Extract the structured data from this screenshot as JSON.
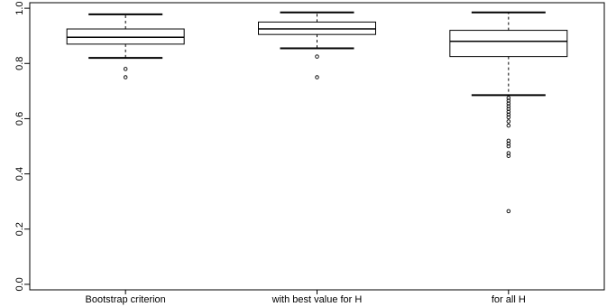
{
  "chart_data": {
    "type": "boxplot",
    "title": "",
    "xlabel": "",
    "ylabel": "",
    "ylim": [
      -0.02,
      1.02
    ],
    "grid": false,
    "yticks": [
      {
        "value": 0.0,
        "label": "0.0"
      },
      {
        "value": 0.2,
        "label": "0.2"
      },
      {
        "value": 0.4,
        "label": "0.4"
      },
      {
        "value": 0.6,
        "label": "0.6"
      },
      {
        "value": 0.8,
        "label": "0.8"
      },
      {
        "value": 1.0,
        "label": "1.0"
      }
    ],
    "categories": [
      "Bootstrap criterion",
      "with best value for H",
      "for all H"
    ],
    "boxes": [
      {
        "whisker_low": 0.82,
        "q1": 0.87,
        "median": 0.895,
        "q3": 0.925,
        "whisker_high": 0.978,
        "outliers": [
          0.78,
          0.75
        ]
      },
      {
        "whisker_low": 0.855,
        "q1": 0.905,
        "median": 0.925,
        "q3": 0.95,
        "whisker_high": 0.985,
        "outliers": [
          0.825,
          0.75
        ]
      },
      {
        "whisker_low": 0.685,
        "q1": 0.825,
        "median": 0.88,
        "q3": 0.92,
        "whisker_high": 0.985,
        "outliers": [
          0.675,
          0.665,
          0.655,
          0.645,
          0.635,
          0.625,
          0.615,
          0.605,
          0.59,
          0.575,
          0.52,
          0.51,
          0.5,
          0.475,
          0.465,
          0.265
        ]
      }
    ]
  }
}
